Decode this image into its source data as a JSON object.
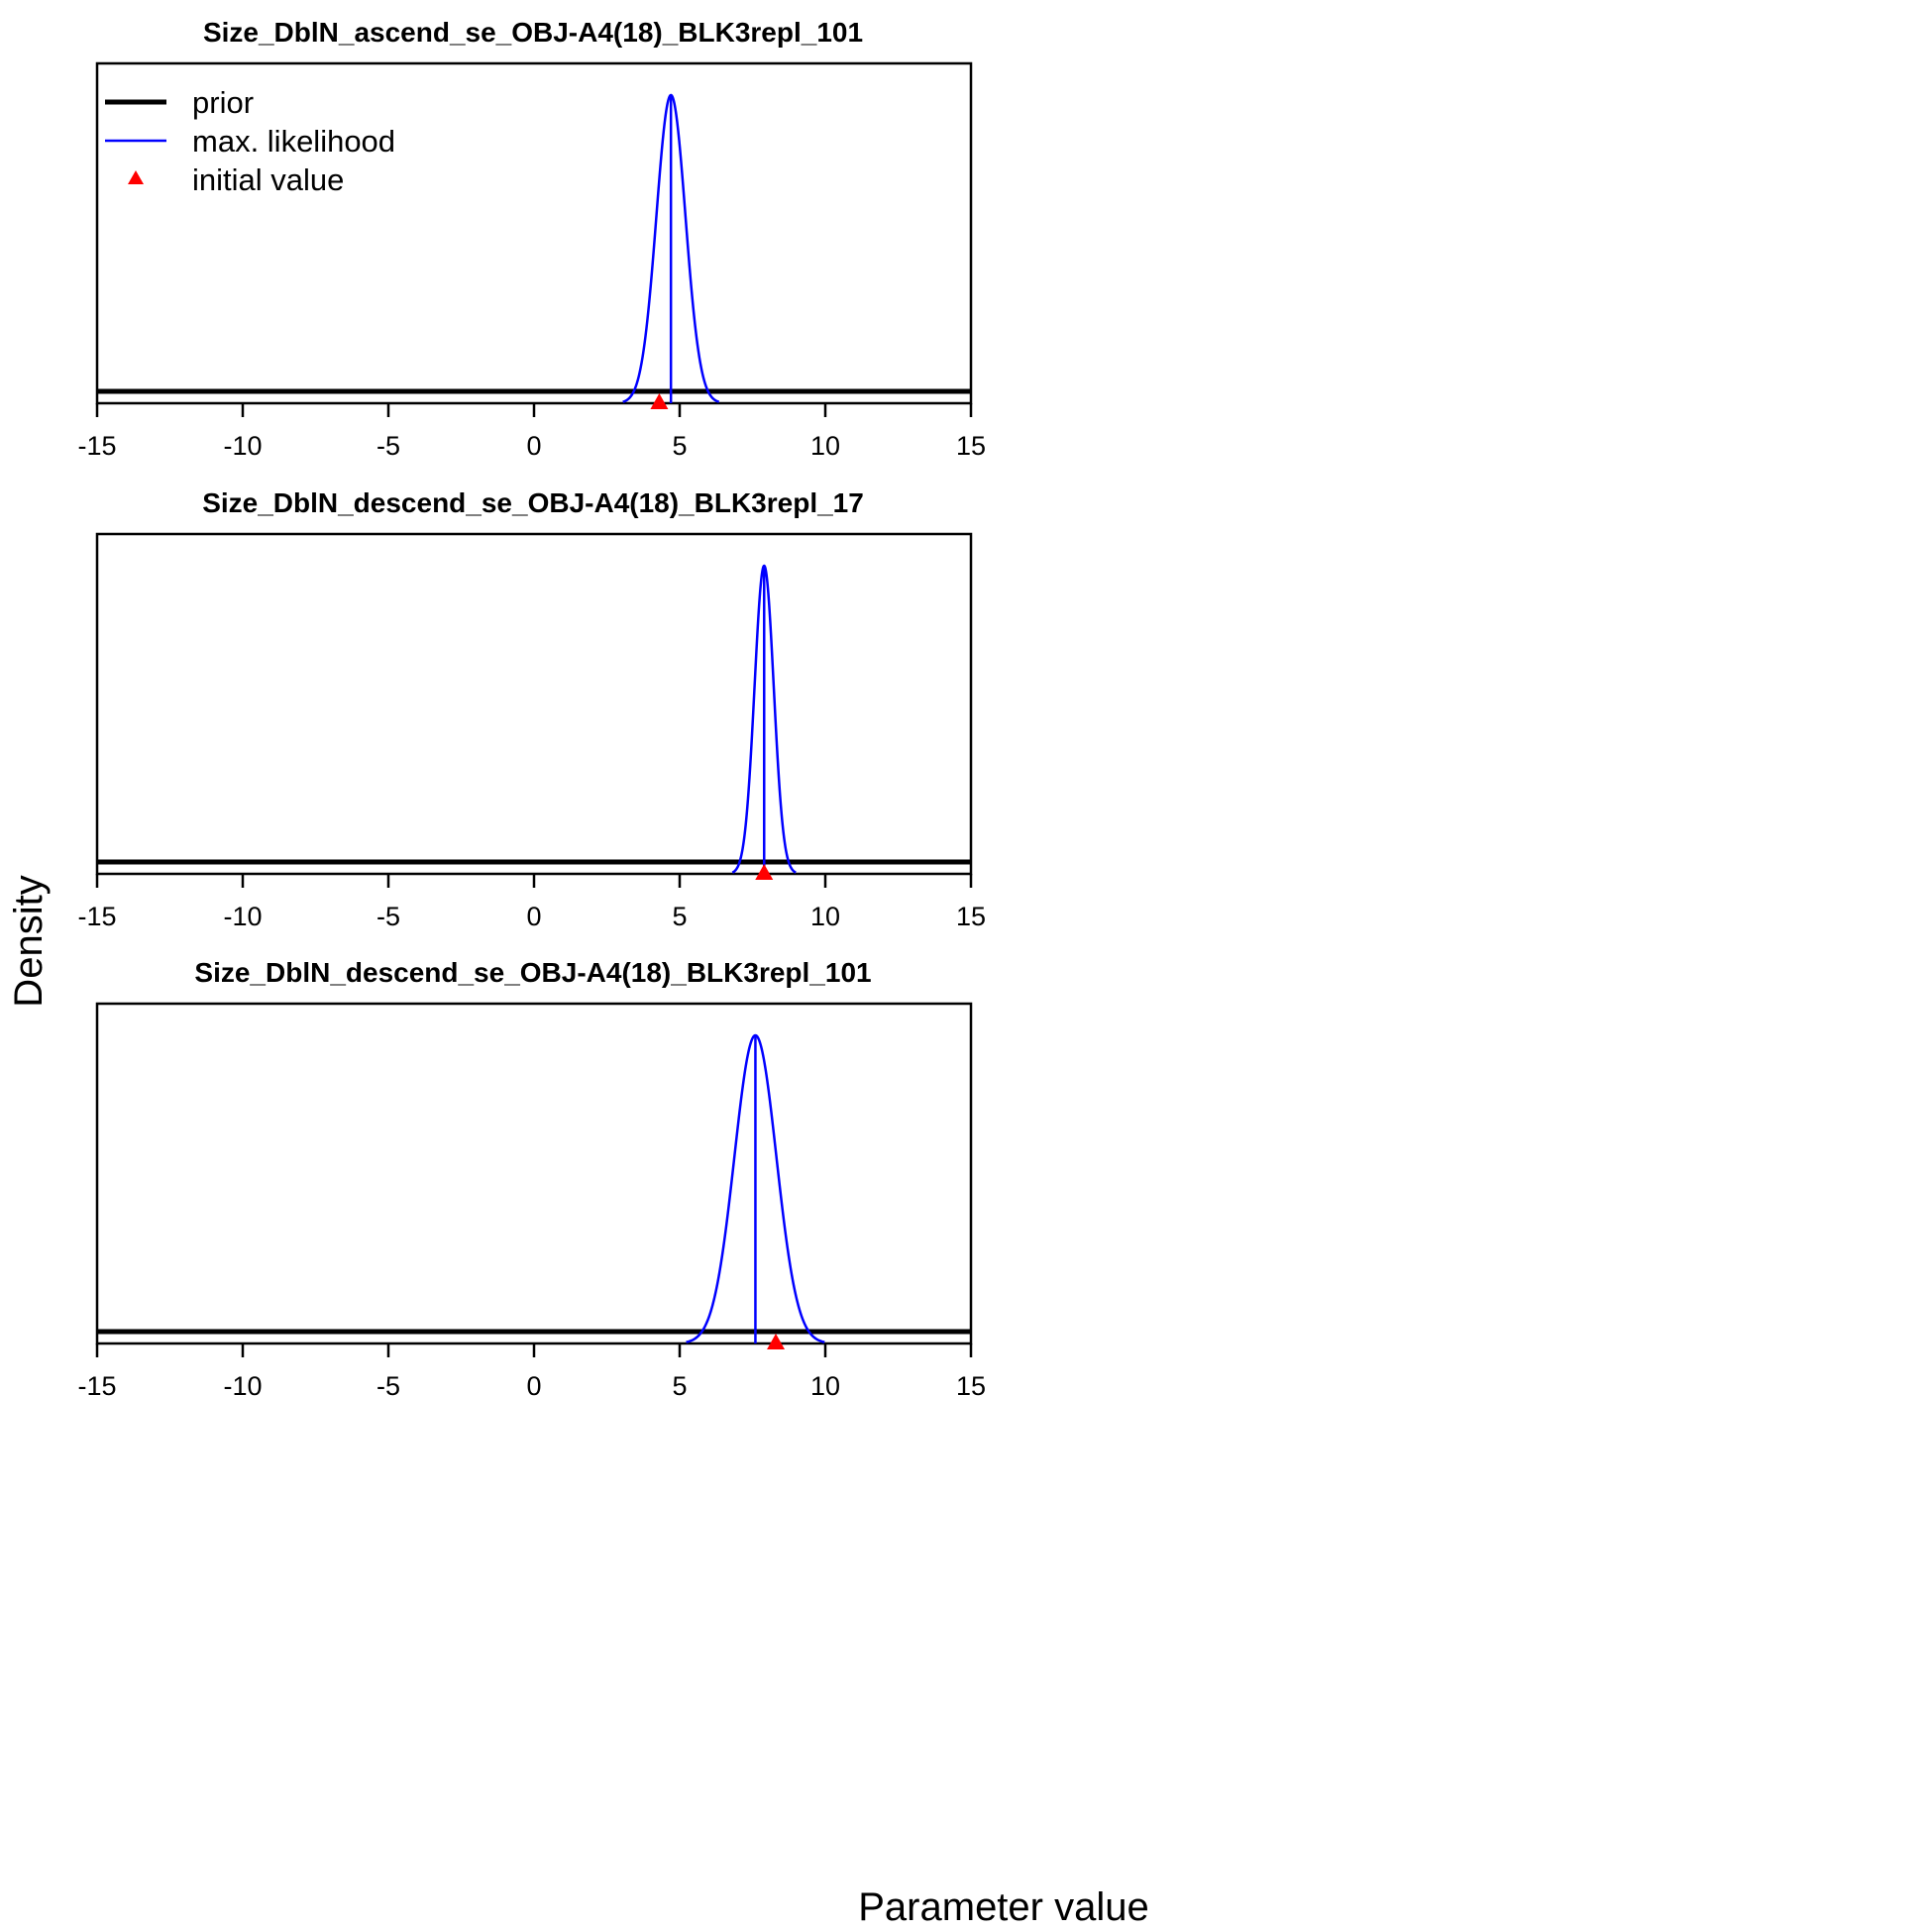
{
  "figure": {
    "xlabel": "Parameter value",
    "ylabel": "Density"
  },
  "legend": {
    "placement": "top-left",
    "items": [
      {
        "label": "prior",
        "color": "#000000",
        "kind": "thick-line"
      },
      {
        "label": "max. likelihood",
        "color": "#0000ff",
        "kind": "line"
      },
      {
        "label": "initial value",
        "color": "#ff0000",
        "kind": "triangle"
      }
    ]
  },
  "colors": {
    "prior": "#000000",
    "max_likelihood": "#0000ff",
    "initial_value": "#ff0000"
  },
  "chart_data": [
    {
      "type": "line",
      "title": "Size_DblN_ascend_se_OBJ-A4(18)_BLK3repl_101",
      "xlim": [
        -15,
        15
      ],
      "xticks": [
        "-15",
        "-10",
        "-5",
        "0",
        "5",
        "10",
        "15"
      ],
      "mle": 4.7,
      "sd": 0.5,
      "initial_value": 4.3
    },
    {
      "type": "line",
      "title": "Size_DblN_descend_se_OBJ-A4(18)_BLK3repl_17",
      "xlim": [
        -15,
        15
      ],
      "xticks": [
        "-15",
        "-10",
        "-5",
        "0",
        "5",
        "10",
        "15"
      ],
      "mle": 7.9,
      "sd": 0.33,
      "initial_value": 7.9
    },
    {
      "type": "line",
      "title": "Size_DblN_descend_se_OBJ-A4(18)_BLK3repl_101",
      "xlim": [
        -15,
        15
      ],
      "xticks": [
        "-15",
        "-10",
        "-5",
        "0",
        "5",
        "10",
        "15"
      ],
      "mle": 7.6,
      "sd": 0.72,
      "initial_value": 8.3
    }
  ]
}
